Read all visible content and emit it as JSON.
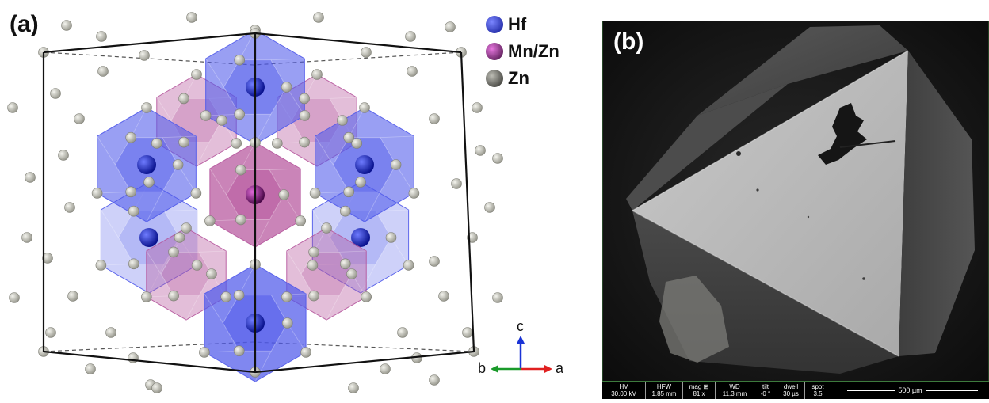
{
  "panel_a": {
    "label": "(a)",
    "legend": [
      {
        "label": "Hf",
        "color": "#1f2fd0"
      },
      {
        "label": "Mn/Zn",
        "color": "#8a1f86"
      },
      {
        "label": "Zn",
        "color": "#6b6b66"
      }
    ],
    "axes": {
      "c": "c",
      "b": "b",
      "a": "a"
    },
    "colors": {
      "hf_polyhedron": "#4f59ea",
      "mnzn_polyhedron": "#b5559c",
      "zn_atom": "#c6c6bc",
      "cell_edge": "#111111"
    }
  },
  "panel_b": {
    "label": "(b)",
    "sem_info": [
      {
        "key": "HV",
        "value": "30.00 kV"
      },
      {
        "key": "HFW",
        "value": "1.85 mm"
      },
      {
        "key": "mag ⊞",
        "value": "81 x"
      },
      {
        "key": "WD",
        "value": "11.3 mm"
      },
      {
        "key": "tilt",
        "value": "-0 °"
      },
      {
        "key": "dwell",
        "value": "30 µs"
      },
      {
        "key": "spot",
        "value": "3.5"
      }
    ],
    "scale_bar": "500 µm"
  }
}
